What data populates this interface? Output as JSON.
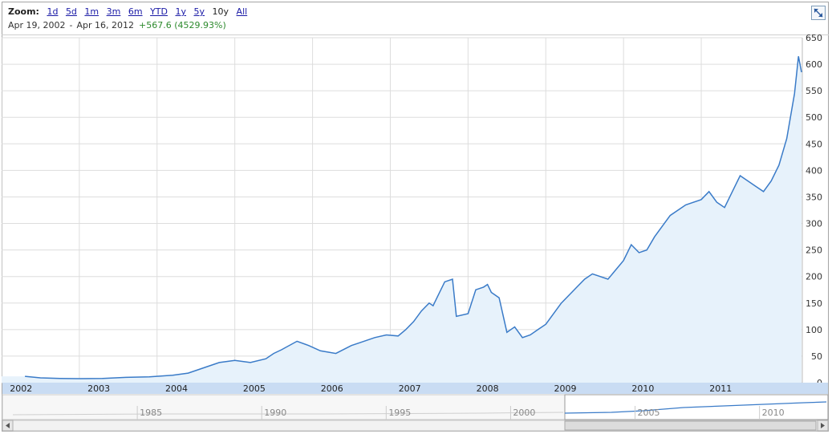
{
  "header": {
    "zoom_label": "Zoom:",
    "zoom_options": [
      "1d",
      "5d",
      "1m",
      "3m",
      "6m",
      "YTD",
      "1y",
      "5y",
      "10y",
      "All"
    ],
    "zoom_active": "10y",
    "range_start": "Apr 19, 2002",
    "range_separator": "-",
    "range_end": "Apr 16, 2012",
    "change_text": "+567.6 (4529.93%)"
  },
  "colors": {
    "line": "#3a7bc8",
    "fill": "#e7f2fb",
    "grid": "#dddddd",
    "axis_band": "#c9dcf3",
    "change_positive": "#2d8a2d"
  },
  "icons": {
    "expand": "expand-arrows-icon",
    "scroll_left": "arrow-left-icon",
    "scroll_right": "arrow-right-icon"
  },
  "chart_data": {
    "type": "area",
    "title": "",
    "xlabel": "",
    "ylabel": "",
    "ylim": [
      0,
      650
    ],
    "yticks": [
      0,
      50,
      100,
      150,
      200,
      250,
      300,
      350,
      400,
      450,
      500,
      550,
      600,
      650
    ],
    "x_tick_labels": [
      "2002",
      "2003",
      "2004",
      "2005",
      "2006",
      "2007",
      "2008",
      "2009",
      "2010",
      "2011"
    ],
    "xlim": [
      2002.0,
      2012.3
    ],
    "grid": true,
    "series": [
      {
        "x": [
          2002.3,
          2002.5,
          2002.75,
          2003.0,
          2003.3,
          2003.6,
          2003.9,
          2004.2,
          2004.4,
          2004.6,
          2004.8,
          2005.0,
          2005.2,
          2005.4,
          2005.5,
          2005.6,
          2005.8,
          2005.95,
          2006.1,
          2006.3,
          2006.5,
          2006.6,
          2006.8,
          2006.95,
          2007.1,
          2007.2,
          2007.3,
          2007.4,
          2007.5,
          2007.55,
          2007.6,
          2007.7,
          2007.8,
          2007.85,
          2008.0,
          2008.1,
          2008.2,
          2008.25,
          2008.3,
          2008.4,
          2008.5,
          2008.6,
          2008.7,
          2008.8,
          2008.9,
          2009.0,
          2009.2,
          2009.4,
          2009.5,
          2009.6,
          2009.8,
          2010.0,
          2010.1,
          2010.2,
          2010.3,
          2010.4,
          2010.6,
          2010.8,
          2011.0,
          2011.1,
          2011.2,
          2011.3,
          2011.4,
          2011.5,
          2011.6,
          2011.7,
          2011.8,
          2011.9,
          2012.0,
          2012.1,
          2012.2,
          2012.25,
          2012.29
        ],
        "y": [
          12,
          9,
          8,
          7.5,
          8,
          10,
          11,
          14,
          18,
          28,
          38,
          42,
          38,
          45,
          55,
          62,
          78,
          70,
          60,
          55,
          70,
          75,
          85,
          90,
          88,
          100,
          115,
          135,
          150,
          145,
          160,
          190,
          195,
          125,
          130,
          175,
          180,
          185,
          170,
          160,
          95,
          105,
          85,
          90,
          100,
          110,
          150,
          180,
          195,
          205,
          195,
          230,
          260,
          245,
          250,
          275,
          315,
          335,
          345,
          360,
          340,
          330,
          360,
          390,
          380,
          370,
          360,
          380,
          410,
          460,
          545,
          615,
          585
        ]
      }
    ]
  },
  "navigator": {
    "tick_labels": [
      "1985",
      "1990",
      "1995",
      "2000",
      "2005",
      "2010"
    ]
  }
}
